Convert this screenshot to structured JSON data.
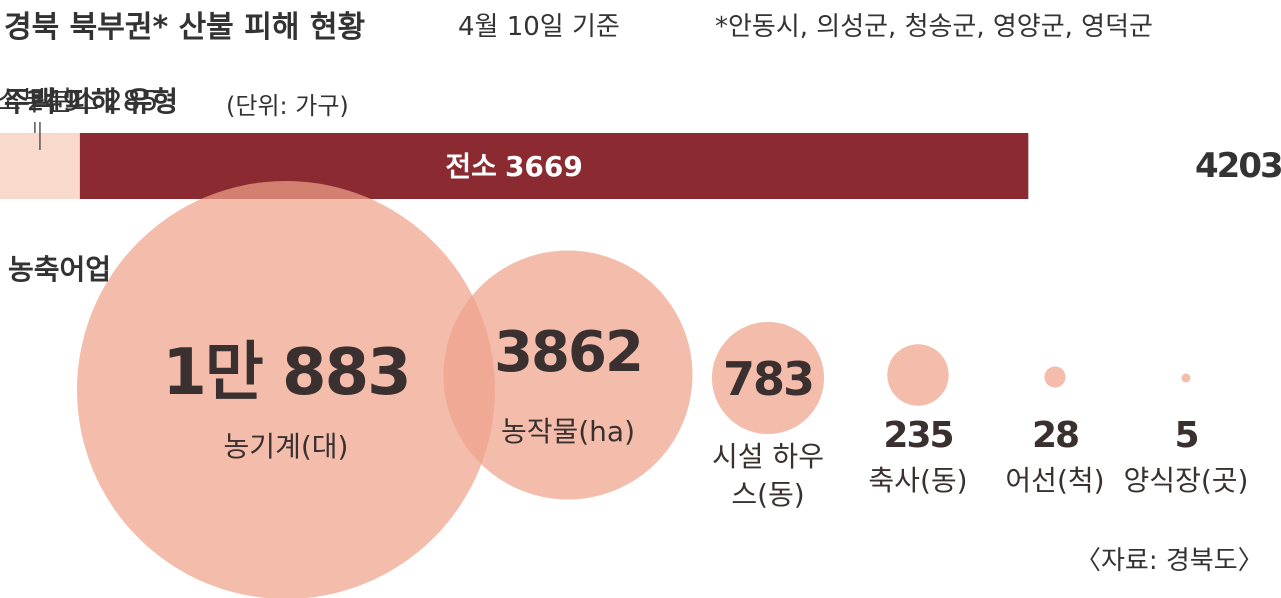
{
  "header": {
    "title": "경북 북부권* 산불 피해 현황",
    "date": "4월 10일 기준",
    "note": "*안동시, 의성군, 청송군, 영양군, 영덕군",
    "source": "〈자료: 경북도〉"
  },
  "chart_data": [
    {
      "type": "stacked-bar",
      "title": "주택 피해 유형",
      "subtitle": "(단위: 가구)",
      "series": [
        {
          "name": "전소",
          "values": [
            3669
          ],
          "color": "#8b2a31"
        },
        {
          "name": "반소",
          "values": [
            249
          ],
          "color": "#e9825f"
        },
        {
          "name": "부분소",
          "values": [
            285
          ],
          "color": "#f9d9cc"
        }
      ],
      "total": 4203
    },
    {
      "type": "bubble",
      "title": "농축어업",
      "color": "#eea28a",
      "categories": [
        "농기계(대)",
        "농작물(ha)",
        "시설 하우스(동)",
        "축사(동)",
        "어선(척)",
        "양식장(곳)"
      ],
      "values": [
        10883,
        3862,
        783,
        235,
        28,
        5
      ],
      "value_labels": [
        "1만 883",
        "3862",
        "783",
        "235",
        "28",
        "5"
      ]
    }
  ]
}
